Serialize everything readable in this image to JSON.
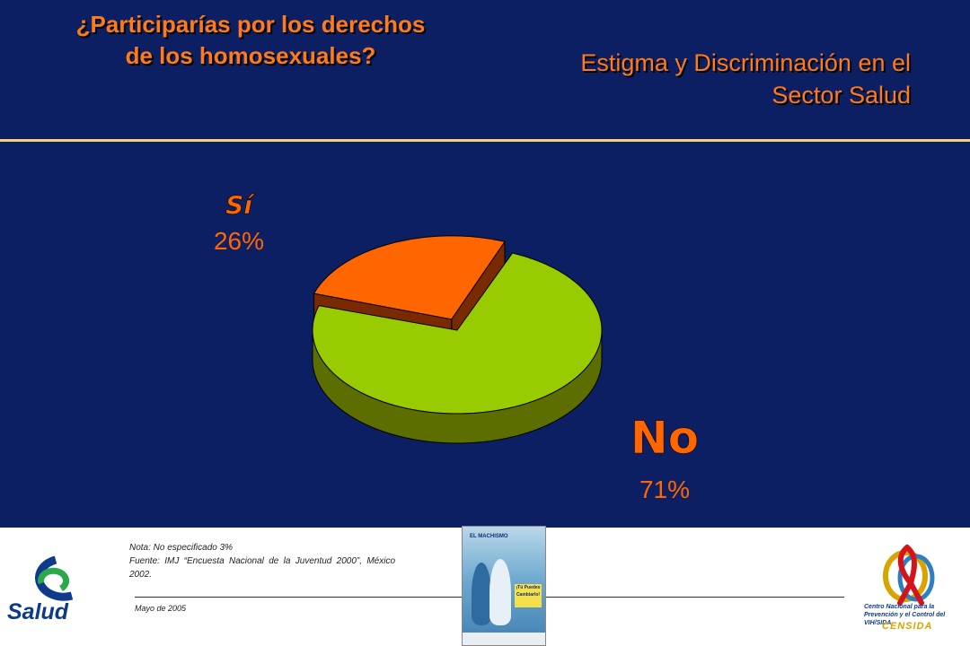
{
  "header": {
    "title_line1": "¿Participarías por los derechos",
    "title_line2": "de los homosexuales?",
    "subtitle_line1": "Estigma y Discriminación en el",
    "subtitle_line2": "Sector Salud"
  },
  "chart_data": {
    "type": "pie",
    "categories": [
      "Sí",
      "No"
    ],
    "values": [
      26,
      71
    ],
    "value_labels": [
      "26%",
      "71%"
    ],
    "colors": [
      "#ff6600",
      "#99cc00"
    ],
    "side_colors": [
      "#7a2a00",
      "#5c6e00"
    ],
    "label_colors": [
      "#ff6600",
      "#ff6600"
    ],
    "exploded": "Sí",
    "style": "3d"
  },
  "footer": {
    "note": "Nota: No especificado 3%",
    "source": "Fuente: IMJ “Encuesta Nacional de la Juventud 2000”, México 2002.",
    "date": "Mayo de 2005",
    "logo_left": "Salud",
    "poster_line1": "EL MACHISMO",
    "poster_line2": "¡Tú Puedes Cambiarlo!",
    "logo_right_text": "Centro Nacional para la Prevención y el Control del VIH/SIDA",
    "logo_right_name": "CENSIDA"
  }
}
